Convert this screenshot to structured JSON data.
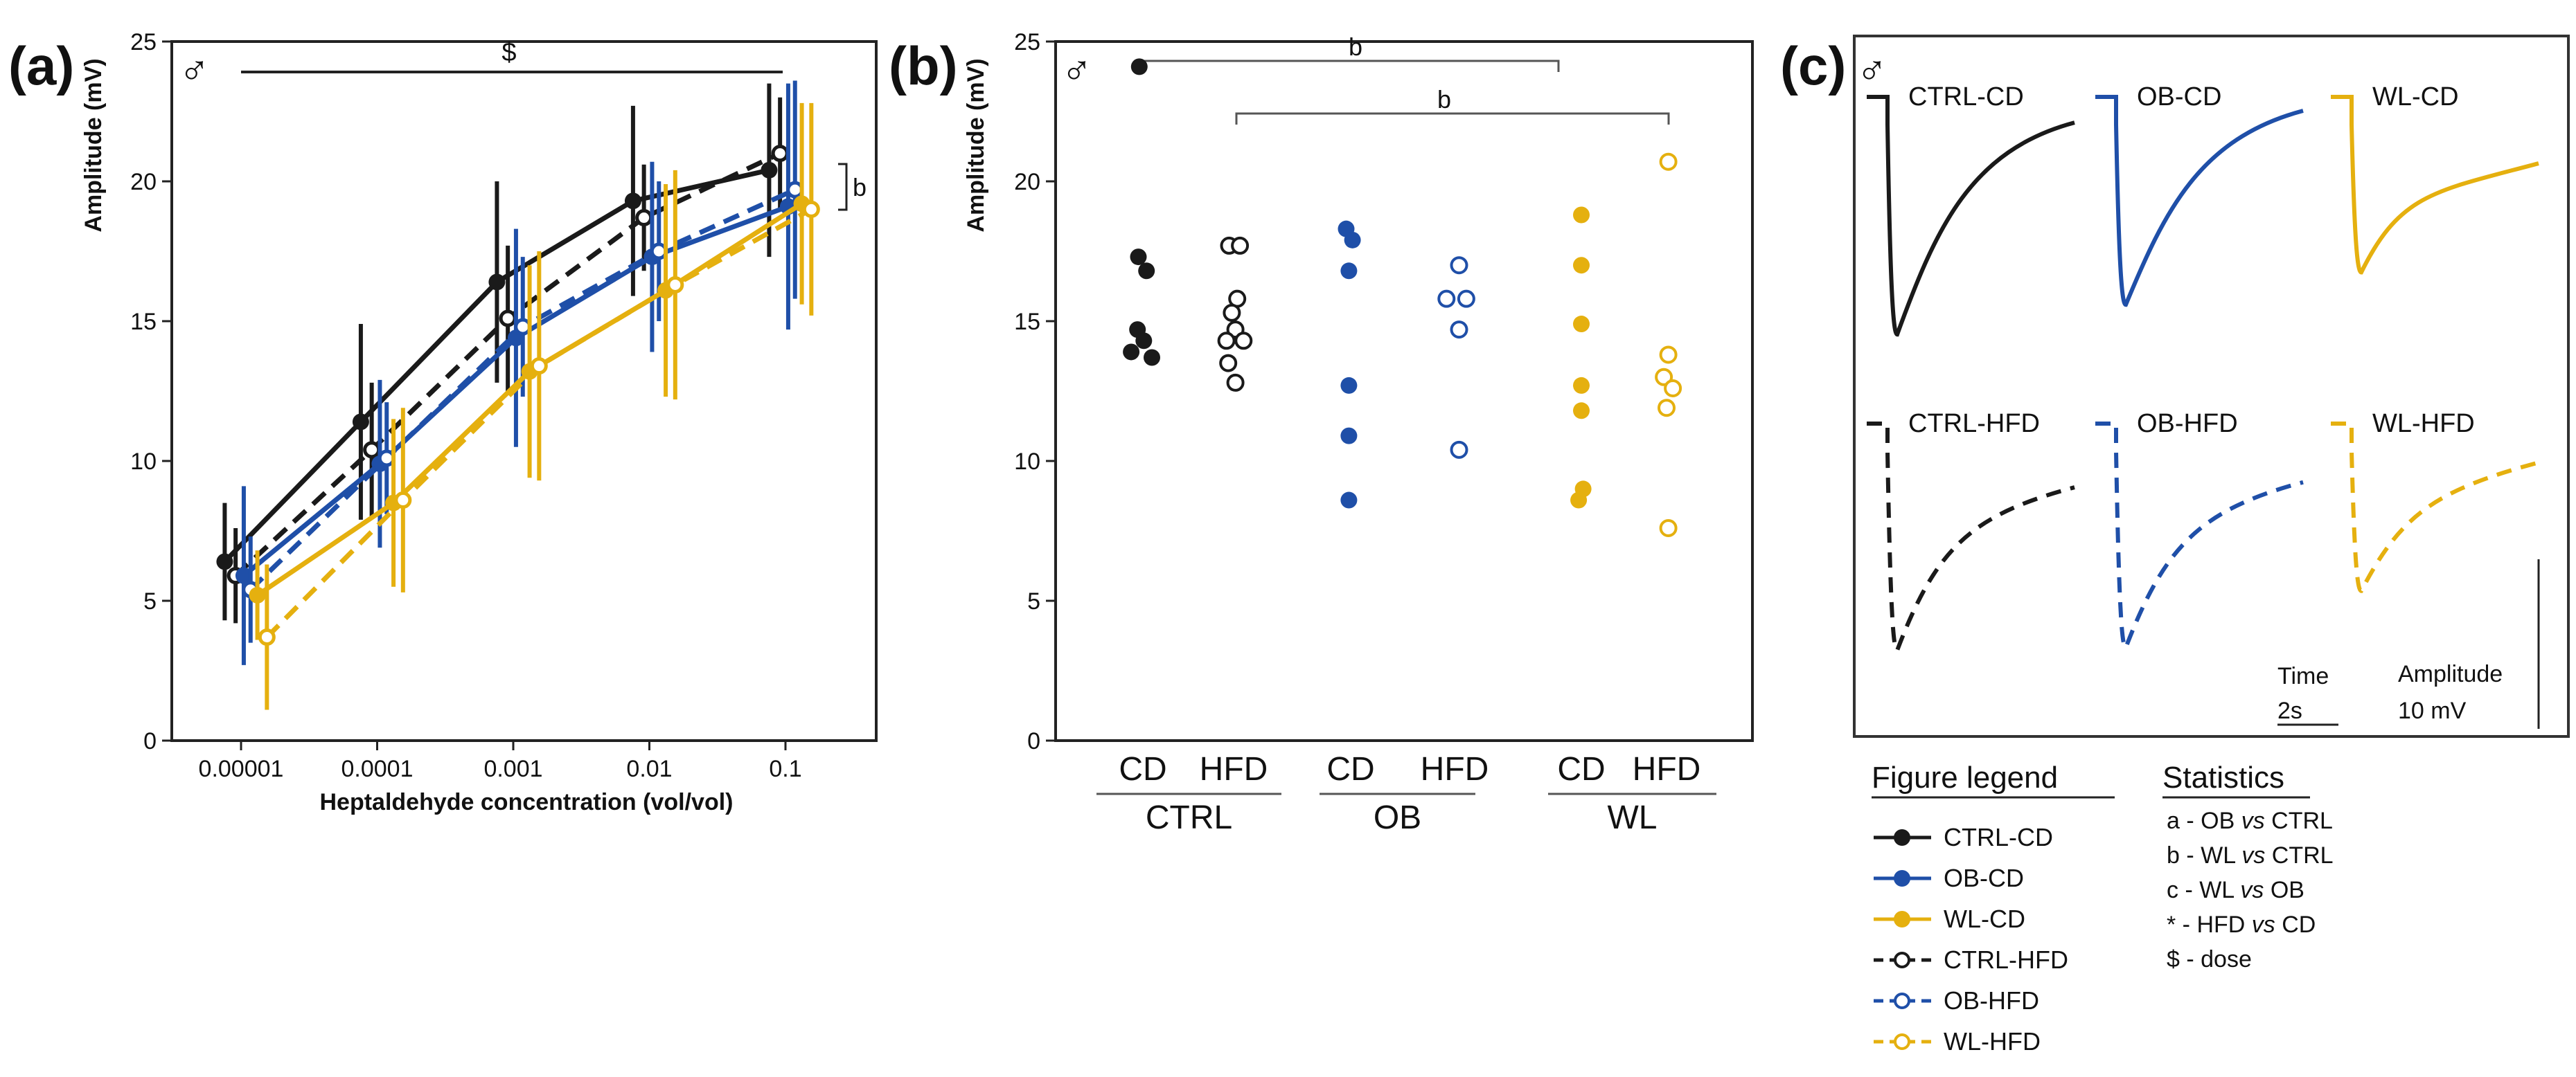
{
  "colors": {
    "ctrl": "#1a1a1a",
    "ob": "#1f4fa8",
    "wl": "#e5b00f",
    "axis": "#222222",
    "bracket": "#555555"
  },
  "male_symbol": "♂",
  "chart_data": [
    {
      "panel": "(a)",
      "type": "line",
      "x_scale": "log",
      "x": [
        1e-05,
        0.0001,
        0.001,
        0.01,
        0.1
      ],
      "xtick_labels": [
        "0.00001",
        "0.0001",
        "0.001",
        "0.01",
        "0.1"
      ],
      "xlabel": "Heptaldehyde concentration (vol/vol)",
      "ylabel": "Amplitude (mV)",
      "ylim": [
        0,
        25
      ],
      "yticks": [
        0,
        5,
        10,
        15,
        20,
        25
      ],
      "series": [
        {
          "name": "CTRL-CD",
          "group": "ctrl",
          "style": "solid",
          "filled": true,
          "values": [
            6.4,
            11.4,
            16.4,
            19.3,
            20.4
          ],
          "err": [
            2.1,
            3.5,
            3.6,
            3.4,
            3.1
          ],
          "offset": -0.12
        },
        {
          "name": "CTRL-HFD",
          "group": "ctrl",
          "style": "dashed",
          "filled": false,
          "values": [
            5.9,
            10.4,
            15.1,
            18.7,
            21.0
          ],
          "err": [
            1.7,
            2.4,
            2.6,
            1.9,
            2.0
          ],
          "offset": -0.04
        },
        {
          "name": "OB-CD",
          "group": "ob",
          "style": "solid",
          "filled": true,
          "values": [
            5.9,
            9.9,
            14.4,
            17.3,
            19.1
          ],
          "err": [
            3.2,
            3.0,
            3.9,
            3.4,
            4.4
          ],
          "offset": 0.02
        },
        {
          "name": "OB-HFD",
          "group": "ob",
          "style": "dashed",
          "filled": false,
          "values": [
            5.4,
            10.1,
            14.8,
            17.5,
            19.7
          ],
          "err": [
            1.9,
            2.0,
            2.5,
            2.5,
            3.9
          ],
          "offset": 0.07
        },
        {
          "name": "WL-CD",
          "group": "wl",
          "style": "solid",
          "filled": true,
          "values": [
            5.2,
            8.5,
            13.2,
            16.1,
            19.2
          ],
          "err": [
            1.6,
            3.0,
            3.8,
            3.8,
            3.6
          ],
          "offset": 0.12
        },
        {
          "name": "WL-HFD",
          "group": "wl",
          "style": "dashed",
          "filled": false,
          "values": [
            3.7,
            8.6,
            13.4,
            16.3,
            19.0
          ],
          "err": [
            2.6,
            3.3,
            4.1,
            4.1,
            3.8
          ],
          "offset": 0.19
        }
      ],
      "annotations": [
        "$",
        "b"
      ]
    },
    {
      "panel": "(b)",
      "type": "scatter",
      "ylabel": "Amplitude (mV)",
      "ylim": [
        0,
        25
      ],
      "yticks": [
        0,
        5,
        10,
        15,
        20,
        25
      ],
      "categories": [
        "CD",
        "HFD",
        "CD",
        "HFD",
        "CD",
        "HFD"
      ],
      "group_labels": [
        "CTRL",
        "OB",
        "WL"
      ],
      "series": [
        {
          "name": "CTRL-CD",
          "group": "ctrl",
          "filled": true,
          "points": [
            [
              -0.04,
              24.1
            ],
            [
              -0.05,
              17.3
            ],
            [
              0.04,
              16.8
            ],
            [
              -0.06,
              14.7
            ],
            [
              0.01,
              14.3
            ],
            [
              -0.13,
              13.9
            ],
            [
              0.1,
              13.7
            ]
          ]
        },
        {
          "name": "CTRL-HFD",
          "group": "ctrl",
          "filled": false,
          "points": [
            [
              -0.05,
              17.7
            ],
            [
              0.07,
              17.7
            ],
            [
              0.04,
              15.8
            ],
            [
              -0.02,
              15.3
            ],
            [
              0.02,
              14.7
            ],
            [
              -0.08,
              14.3
            ],
            [
              0.11,
              14.3
            ],
            [
              -0.06,
              13.5
            ],
            [
              0.02,
              12.8
            ]
          ]
        },
        {
          "name": "OB-CD",
          "group": "ob",
          "filled": true,
          "points": [
            [
              -0.05,
              18.3
            ],
            [
              0.02,
              17.9
            ],
            [
              -0.02,
              16.8
            ],
            [
              -0.02,
              12.7
            ],
            [
              -0.02,
              10.9
            ],
            [
              -0.02,
              8.6
            ]
          ]
        },
        {
          "name": "OB-HFD",
          "group": "ob",
          "filled": false,
          "points": [
            [
              0.05,
              17.0
            ],
            [
              -0.09,
              15.8
            ],
            [
              0.13,
              15.8
            ],
            [
              0.05,
              14.7
            ],
            [
              0.05,
              10.4
            ]
          ]
        },
        {
          "name": "WL-CD",
          "group": "wl",
          "filled": true,
          "points": [
            [
              0.0,
              18.8
            ],
            [
              0.0,
              17.0
            ],
            [
              0.0,
              14.9
            ],
            [
              0.0,
              12.7
            ],
            [
              0.0,
              11.8
            ],
            [
              0.02,
              9.0
            ],
            [
              -0.03,
              8.6
            ]
          ]
        },
        {
          "name": "WL-HFD",
          "group": "wl",
          "filled": false,
          "points": [
            [
              0.02,
              20.7
            ],
            [
              0.02,
              13.8
            ],
            [
              -0.03,
              13.0
            ],
            [
              0.07,
              12.6
            ],
            [
              0.0,
              11.9
            ],
            [
              0.02,
              7.6
            ]
          ]
        }
      ],
      "significance": [
        {
          "label": "b",
          "from": "CTRL-CD",
          "to": "WL-CD"
        },
        {
          "label": "b",
          "from": "CTRL-HFD",
          "to": "WL-HFD"
        }
      ]
    }
  ],
  "panel_c": {
    "label": "(c)",
    "traces": [
      {
        "name": "CTRL-CD",
        "group": "ctrl",
        "style": "solid",
        "depth": 0.88,
        "recovery": 0.95
      },
      {
        "name": "OB-CD",
        "group": "ob",
        "style": "solid",
        "depth": 0.77,
        "recovery": 1.0
      },
      {
        "name": "WL-CD",
        "group": "wl",
        "style": "solid",
        "depth": 0.65,
        "recovery": 0.7
      },
      {
        "name": "CTRL-HFD",
        "group": "ctrl",
        "style": "dashed",
        "depth": 0.84,
        "recovery": 0.78
      },
      {
        "name": "OB-HFD",
        "group": "ob",
        "style": "dashed",
        "depth": 0.83,
        "recovery": 0.8
      },
      {
        "name": "WL-HFD",
        "group": "wl",
        "style": "dashed",
        "depth": 0.62,
        "recovery": 0.85
      }
    ],
    "scale_time_label": "Time",
    "scale_time_value": "2s",
    "scale_amp_label": "Amplitude",
    "scale_amp_value": "10 mV"
  },
  "legend": {
    "title": "Figure legend",
    "items": [
      {
        "label": "CTRL-CD",
        "group": "ctrl",
        "style": "solid",
        "filled": true
      },
      {
        "label": "OB-CD",
        "group": "ob",
        "style": "solid",
        "filled": true
      },
      {
        "label": "WL-CD",
        "group": "wl",
        "style": "solid",
        "filled": true
      },
      {
        "label": "CTRL-HFD",
        "group": "ctrl",
        "style": "dashed",
        "filled": false
      },
      {
        "label": "OB-HFD",
        "group": "ob",
        "style": "dashed",
        "filled": false
      },
      {
        "label": "WL-HFD",
        "group": "wl",
        "style": "dashed",
        "filled": false
      }
    ]
  },
  "statistics": {
    "title": "Statistics",
    "items": [
      {
        "sym": "a - ",
        "a": "OB ",
        "vs": "vs",
        "b": " CTRL"
      },
      {
        "sym": "b - ",
        "a": "WL ",
        "vs": "vs",
        "b": " CTRL"
      },
      {
        "sym": "c - ",
        "a": "WL ",
        "vs": "vs",
        "b": " OB"
      },
      {
        "sym": "* - ",
        "a": "HFD ",
        "vs": "vs",
        "b": " CD"
      },
      {
        "sym": "$ - ",
        "a": "dose",
        "vs": "",
        "b": ""
      }
    ]
  }
}
